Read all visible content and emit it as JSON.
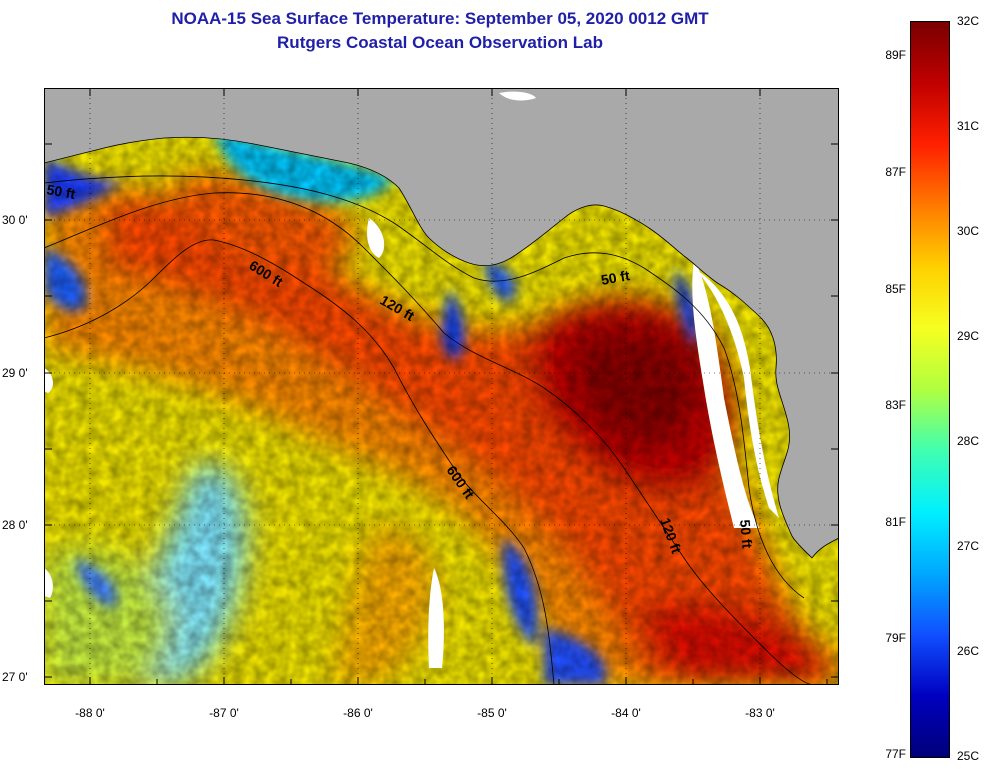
{
  "header": {
    "title": "NOAA-15 Sea Surface Temperature:  September 05, 2020 0012 GMT",
    "subtitle": "Rutgers Coastal Ocean Observation Lab"
  },
  "map": {
    "lat_labels": [
      "30 0'",
      "29 0'",
      "28 0'",
      "27 0'"
    ],
    "lon_labels": [
      "-88 0'",
      "-87 0'",
      "-86 0'",
      "-85 0'",
      "-84 0'",
      "-83 0'"
    ],
    "contour_labels": [
      "50 ft",
      "600 ft",
      "120 ft",
      "50 ft",
      "600 ft",
      "120 ft",
      "50 ft"
    ]
  },
  "colorbar": {
    "celsius_labels": [
      "32C",
      "31C",
      "30C",
      "29C",
      "28C",
      "27C",
      "26C",
      "25C"
    ],
    "fahrenheit_labels": [
      "89F",
      "87F",
      "85F",
      "83F",
      "81F",
      "79F",
      "77F"
    ],
    "colors": [
      "#7a0000",
      "#c00000",
      "#ff2000",
      "#ff7a00",
      "#ffd000",
      "#f6ff20",
      "#b0ff40",
      "#40ffb0",
      "#00f0ff",
      "#00a8ff",
      "#1050ff",
      "#0000c0",
      "#00007a"
    ]
  },
  "colors": {
    "title": "#1f1fa8",
    "land": "#a9a9a9",
    "cloud": "#ffffff"
  }
}
